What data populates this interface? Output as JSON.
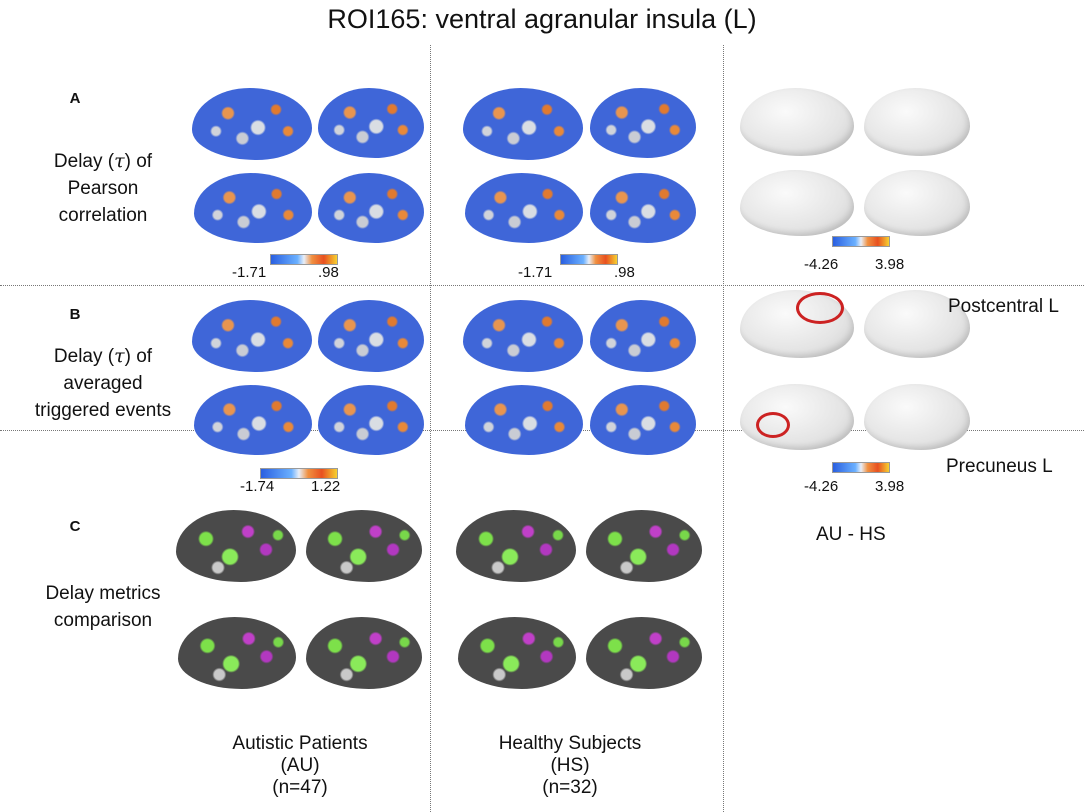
{
  "title": "ROI165: ventral agranular insula (L)",
  "rows": [
    {
      "letter": "A",
      "label_l1_a": "Delay (",
      "tau": "τ",
      "label_l1_b": ") of",
      "label_l2": "Pearson",
      "label_l3": "correlation"
    },
    {
      "letter": "B",
      "label_l1_a": "Delay (",
      "tau": "τ",
      "label_l1_b": ") of",
      "label_l2": "averaged",
      "label_l3": "triggered events"
    },
    {
      "letter": "C",
      "label_l1": "Delay metrics",
      "label_l2": "comparison"
    }
  ],
  "colorbars": {
    "a_au": {
      "min": "-1.71",
      "max": ".98"
    },
    "a_hs": {
      "min": "-1.71",
      "max": ".98"
    },
    "a_diff": {
      "min": "-4.26",
      "max": "3.98"
    },
    "b_au": {
      "min": "-1.74",
      "max": "1.22"
    },
    "b_diff": {
      "min": "-4.26",
      "max": "3.98"
    }
  },
  "annotations": {
    "postcentral": "Postcentral L",
    "precuneus": "Precuneus L",
    "diff_label": "AU - HS"
  },
  "columns": [
    {
      "l1": "Autistic Patients",
      "l2": "(AU)",
      "l3": "(n=47)"
    },
    {
      "l1": "Healthy Subjects",
      "l2": "(HS)",
      "l3": "(n=32)"
    }
  ],
  "colors": {
    "blue_map": "#3f66d8",
    "orange_cluster": "#e07a30",
    "green": "#7de04a",
    "magenta": "#c040c8",
    "highlight": "#cc2222"
  }
}
